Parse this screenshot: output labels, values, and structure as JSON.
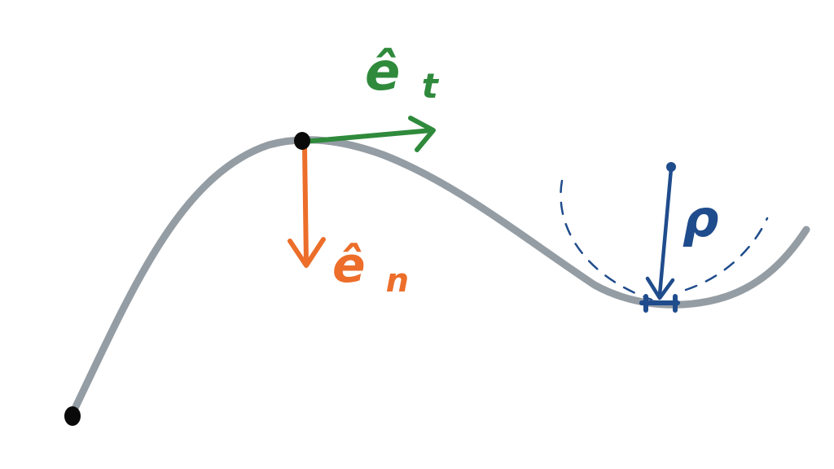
{
  "labels": {
    "tangent_symbol": "ê",
    "tangent_subscript": "t",
    "normal_symbol": "ê",
    "normal_subscript": "n",
    "radius": "ρ"
  },
  "colors": {
    "curve": "#959da4",
    "point": "#0a0a0a",
    "tangent": "#2f8a3c",
    "normal": "#ec6e2a",
    "radius": "#1f4c8c"
  }
}
